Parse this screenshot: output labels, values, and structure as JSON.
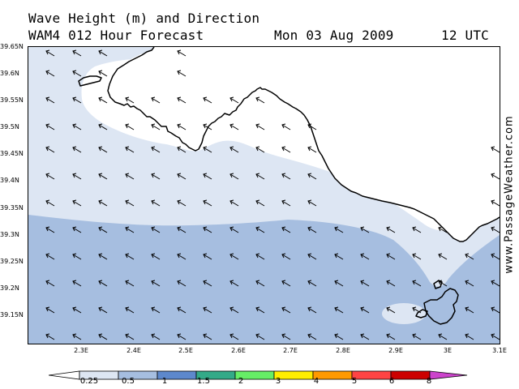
{
  "title": {
    "line1": "Wave Height (m) and Direction",
    "model_label": "WAM4 012 Hour Forecast",
    "date": "Mon 03 Aug 2009",
    "time": "12 UTC"
  },
  "watermark": "www.PassageWeather.com",
  "axes": {
    "lat_labels": [
      "39.65N",
      "39.6N",
      "39.55N",
      "39.5N",
      "39.45N",
      "39.4N",
      "39.35N",
      "39.3N",
      "39.25N",
      "39.2N",
      "39.15N"
    ],
    "lon_labels": [
      "2.3E",
      "2.4E",
      "2.5E",
      "2.6E",
      "2.7E",
      "2.8E",
      "2.9E",
      "3E",
      "3.1E"
    ]
  },
  "legend": {
    "labels": [
      "0.25",
      "0.5",
      "1",
      "1.5",
      "2",
      "3",
      "4",
      "5",
      "6",
      "8"
    ],
    "colors": [
      "#ffffff",
      "#dde6f3",
      "#a6bee0",
      "#5d88cc",
      "#33aa88",
      "#66ee66",
      "#ffee00",
      "#ff9900",
      "#ff4444",
      "#cc0000",
      "#cc44cc"
    ]
  },
  "map": {
    "colors": {
      "land": "#ffffff",
      "band_025_05": "#dde6f3",
      "band_05_1": "#a6bee0",
      "coast": "#000000",
      "arrow": "#000000"
    },
    "wave_direction": "toward west-northwest (arrows point left and slightly up)"
  }
}
